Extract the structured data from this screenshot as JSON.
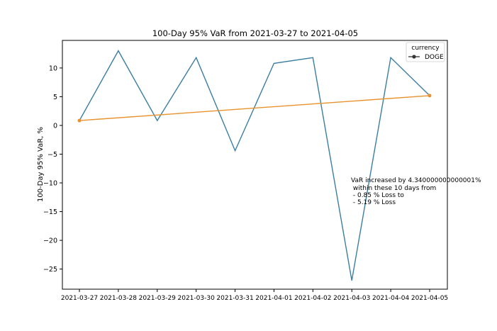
{
  "chart_data": {
    "type": "line",
    "title": "100-Day 95% VaR from 2021-03-27 to 2021-04-05",
    "xlabel": "",
    "ylabel": "100-Day 95% VaR, %",
    "ylim": [
      -28.5,
      14.8
    ],
    "yticks": [
      10,
      5,
      0,
      -5,
      -10,
      -15,
      -20,
      -25
    ],
    "ytick_labels": [
      "10",
      "5",
      "0",
      "−5",
      "−10",
      "−15",
      "−20",
      "−25"
    ],
    "categories": [
      "2021-03-27",
      "2021-03-28",
      "2021-03-29",
      "2021-03-30",
      "2021-03-31",
      "2021-04-01",
      "2021-04-02",
      "2021-04-03",
      "2021-04-04",
      "2021-04-05"
    ],
    "series": [
      {
        "name": "DOGE",
        "color": "#3b7ea1",
        "values": [
          0.85,
          13.0,
          0.85,
          11.8,
          -4.4,
          10.8,
          11.8,
          -27.0,
          11.8,
          5.19
        ]
      }
    ],
    "trend_line": {
      "color": "#e8922d",
      "start": [
        0,
        0.85
      ],
      "end": [
        9,
        5.19
      ]
    },
    "legend": {
      "title": "currency",
      "entries": [
        "DOGE"
      ],
      "position": "top-right"
    },
    "annotation": {
      "lines": [
        "VaR increased by 4.340000000000001%",
        " within these 10 days from",
        " - 0.85 % Loss to",
        " - 5.19 % Loss"
      ]
    },
    "grid": false
  }
}
